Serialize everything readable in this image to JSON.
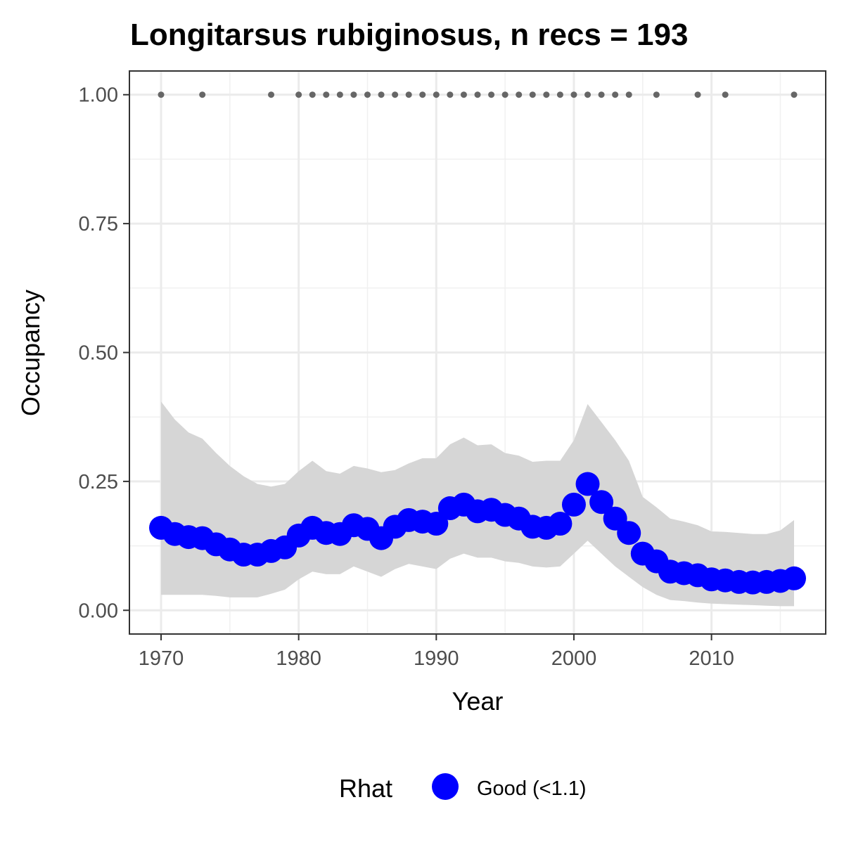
{
  "chart_data": {
    "type": "line",
    "title": "Longitarsus rubiginosus, n recs = 193",
    "xlabel": "Year",
    "ylabel": "Occupancy",
    "xlim": [
      1967.7,
      2018.3
    ],
    "ylim": [
      -0.046,
      1.046
    ],
    "x_ticks": [
      1970,
      1980,
      1990,
      2000,
      2010
    ],
    "x_tick_labels": [
      "1970",
      "1980",
      "1990",
      "2000",
      "2010"
    ],
    "y_ticks": [
      0,
      0.25,
      0.5,
      0.75,
      1.0
    ],
    "y_tick_labels": [
      "0.00",
      "0.25",
      "0.50",
      "0.75",
      "1.00"
    ],
    "grid": true,
    "x": [
      1970,
      1971,
      1972,
      1973,
      1974,
      1975,
      1976,
      1977,
      1978,
      1979,
      1980,
      1981,
      1982,
      1983,
      1984,
      1985,
      1986,
      1987,
      1988,
      1989,
      1990,
      1991,
      1992,
      1993,
      1994,
      1995,
      1996,
      1997,
      1998,
      1999,
      2000,
      2001,
      2002,
      2003,
      2004,
      2005,
      2006,
      2007,
      2008,
      2009,
      2010,
      2011,
      2012,
      2013,
      2014,
      2015,
      2016
    ],
    "series": [
      {
        "name": "Good (<1.1)",
        "color": "#0000ff",
        "values": [
          0.16,
          0.148,
          0.142,
          0.14,
          0.128,
          0.118,
          0.108,
          0.108,
          0.115,
          0.122,
          0.145,
          0.16,
          0.15,
          0.148,
          0.165,
          0.158,
          0.14,
          0.162,
          0.175,
          0.172,
          0.168,
          0.198,
          0.205,
          0.192,
          0.195,
          0.185,
          0.178,
          0.162,
          0.16,
          0.168,
          0.205,
          0.245,
          0.21,
          0.178,
          0.15,
          0.11,
          0.095,
          0.075,
          0.072,
          0.068,
          0.06,
          0.058,
          0.055,
          0.054,
          0.055,
          0.057,
          0.062
        ]
      }
    ],
    "ribbon": {
      "color": "#d6d6d6",
      "lower": [
        0.03,
        0.03,
        0.03,
        0.03,
        0.028,
        0.025,
        0.025,
        0.025,
        0.032,
        0.04,
        0.06,
        0.075,
        0.07,
        0.07,
        0.085,
        0.075,
        0.065,
        0.08,
        0.09,
        0.085,
        0.08,
        0.1,
        0.11,
        0.102,
        0.102,
        0.095,
        0.092,
        0.085,
        0.083,
        0.085,
        0.11,
        0.135,
        0.11,
        0.085,
        0.065,
        0.045,
        0.03,
        0.02,
        0.018,
        0.015,
        0.013,
        0.012,
        0.011,
        0.01,
        0.009,
        0.008,
        0.008
      ],
      "upper": [
        0.405,
        0.37,
        0.345,
        0.333,
        0.305,
        0.28,
        0.26,
        0.245,
        0.24,
        0.245,
        0.27,
        0.29,
        0.27,
        0.265,
        0.28,
        0.275,
        0.268,
        0.272,
        0.285,
        0.295,
        0.295,
        0.322,
        0.335,
        0.32,
        0.322,
        0.305,
        0.3,
        0.288,
        0.29,
        0.29,
        0.33,
        0.4,
        0.365,
        0.33,
        0.29,
        0.22,
        0.2,
        0.178,
        0.172,
        0.165,
        0.153,
        0.152,
        0.15,
        0.148,
        0.148,
        0.155,
        0.175
      ]
    },
    "observed": {
      "color": "#666666",
      "y": 1.0,
      "years": [
        1970,
        1973,
        1978,
        1980,
        1981,
        1982,
        1983,
        1984,
        1985,
        1986,
        1987,
        1988,
        1989,
        1990,
        1991,
        1992,
        1993,
        1994,
        1995,
        1996,
        1997,
        1998,
        1999,
        2000,
        2001,
        2002,
        2003,
        2004,
        2006,
        2009,
        2011,
        2016
      ]
    },
    "legend": {
      "title": "Rhat",
      "position": "bottom",
      "items": [
        {
          "label": "Good (<1.1)",
          "color": "#0000ff"
        }
      ]
    }
  }
}
